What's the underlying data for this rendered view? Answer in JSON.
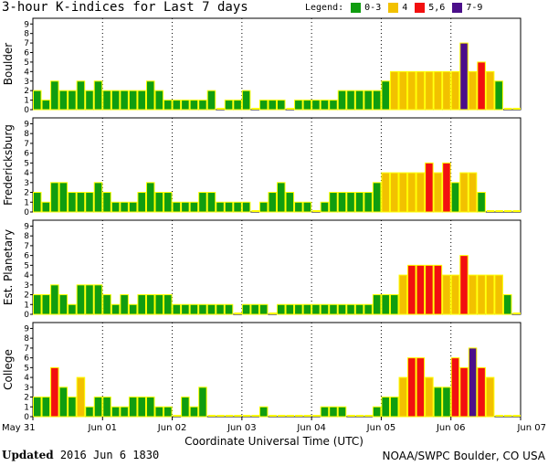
{
  "header": {
    "title": "3-hour K-indices for Last 7 days",
    "legend_label": "Legend:",
    "legend": [
      {
        "label": "0-3",
        "color": "#109d10"
      },
      {
        "label": "4",
        "color": "#f2c100"
      },
      {
        "label": "5,6",
        "color": "#f21010"
      },
      {
        "label": "7-9",
        "color": "#4b0f8a"
      }
    ]
  },
  "footer": {
    "updated_label": "Updated",
    "updated_value": "2016 Jun  6 1830",
    "credit": "NOAA/SWPC Boulder, CO USA"
  },
  "chart_data": {
    "type": "bar",
    "title": "3-hour K-indices for Last 7 days",
    "xlabel": "Coordinate Universal Time (UTC)",
    "x_ticks": [
      "May 31",
      "Jun 01",
      "Jun 02",
      "Jun 03",
      "Jun 04",
      "Jun 05",
      "Jun 06",
      "Jun 07"
    ],
    "ylim": [
      0,
      9
    ],
    "y_ticks": [
      0,
      1,
      2,
      3,
      4,
      5,
      6,
      7,
      8,
      9
    ],
    "bin": "3-hour",
    "color_scale": {
      "0-3": "#109d10",
      "4": "#f2c100",
      "5,6": "#f21010",
      "7-9": "#4b0f8a"
    },
    "series": [
      {
        "name": "Boulder",
        "values": [
          2,
          1,
          3,
          2,
          2,
          3,
          2,
          3,
          2,
          2,
          2,
          2,
          2,
          3,
          2,
          1,
          1,
          1,
          1,
          1,
          2,
          0,
          1,
          1,
          2,
          0,
          1,
          1,
          1,
          0,
          1,
          1,
          1,
          1,
          1,
          2,
          2,
          2,
          2,
          2,
          3,
          4,
          4,
          4,
          4,
          4,
          4,
          4,
          4,
          7,
          4,
          5,
          4,
          3,
          0,
          0
        ]
      },
      {
        "name": "Fredericksburg",
        "values": [
          2,
          1,
          3,
          3,
          2,
          2,
          2,
          3,
          2,
          1,
          1,
          1,
          2,
          3,
          2,
          2,
          1,
          1,
          1,
          2,
          2,
          1,
          1,
          1,
          1,
          0,
          1,
          2,
          3,
          2,
          1,
          1,
          0,
          1,
          2,
          2,
          2,
          2,
          2,
          3,
          4,
          4,
          4,
          4,
          4,
          5,
          4,
          5,
          3,
          4,
          4,
          2,
          0,
          0,
          0,
          0
        ]
      },
      {
        "name": "Est. Planetary",
        "values": [
          2,
          2,
          3,
          2,
          1,
          3,
          3,
          3,
          2,
          1,
          2,
          1,
          2,
          2,
          2,
          2,
          1,
          1,
          1,
          1,
          1,
          1,
          1,
          0,
          1,
          1,
          1,
          0,
          1,
          1,
          1,
          1,
          1,
          1,
          1,
          1,
          1,
          1,
          1,
          2,
          2,
          2,
          4,
          5,
          5,
          5,
          5,
          4,
          4,
          6,
          4,
          4,
          4,
          4,
          2,
          0
        ]
      },
      {
        "name": "College",
        "values": [
          2,
          2,
          5,
          3,
          2,
          4,
          1,
          2,
          2,
          1,
          1,
          2,
          2,
          2,
          1,
          1,
          0,
          2,
          1,
          3,
          0,
          0,
          0,
          0,
          0,
          0,
          1,
          0,
          0,
          0,
          0,
          0,
          0,
          1,
          1,
          1,
          0,
          0,
          0,
          1,
          2,
          2,
          4,
          6,
          6,
          4,
          3,
          3,
          6,
          5,
          7,
          5,
          4,
          0,
          0,
          0
        ]
      }
    ]
  }
}
